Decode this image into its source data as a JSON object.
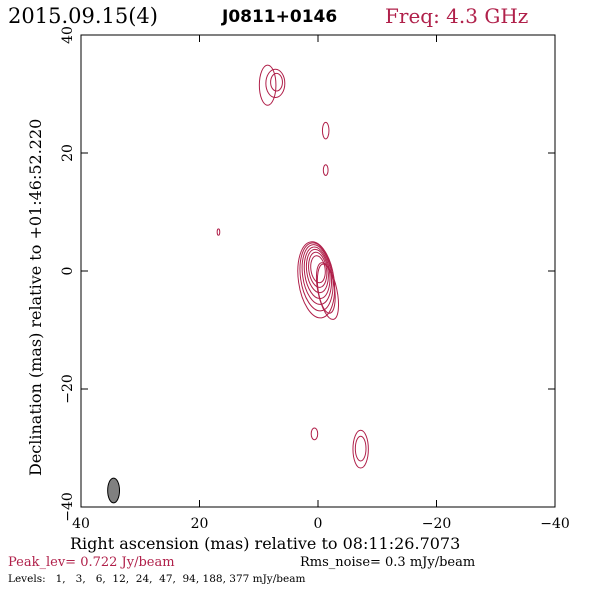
{
  "header": {
    "epoch": "2015.09.15(4)",
    "source": "J0811+0146",
    "freq": "Freq: 4.3 GHz"
  },
  "footer": {
    "peak": "Peak_lev=  0.722 Jy/beam",
    "rms": "Rms_noise=   0.3 mJy/beam",
    "levels": "Levels:   1,   3,   6,  12,  24,  47,  94, 188, 377 mJy/beam"
  },
  "colors": {
    "contour": "#b0204a",
    "freq_text": "#b0204a",
    "peak_text": "#b0204a",
    "beam_fill": "#808080",
    "axes": "#000000"
  },
  "chart_data": {
    "type": "contour",
    "xlabel": "Right ascension (mas) relative to 08:11:26.7073",
    "ylabel": "Declination (mas) relative to +01:46:52.220",
    "xlim": [
      40,
      -40
    ],
    "ylim": [
      -40,
      40
    ],
    "xticks": [
      40,
      20,
      0,
      -20,
      -40
    ],
    "yticks": [
      -40,
      -20,
      0,
      20,
      40
    ],
    "xtick_labels": [
      "40",
      "20",
      "0",
      "−20",
      "−40"
    ],
    "ytick_labels": [
      "−40",
      "−20",
      "0",
      "20",
      "40"
    ],
    "levels_mJy": [
      1,
      3,
      6,
      12,
      24,
      47,
      94,
      188,
      377
    ],
    "peak_Jy_per_beam": 0.722,
    "rms_mJy_per_beam": 0.3,
    "beam": {
      "x": 34.5,
      "y": -37.2,
      "major": 4.2,
      "minor": 2.0,
      "pa_deg": 0
    },
    "contours": [
      {
        "x": 8.5,
        "y": 31.5,
        "rx": 1.4,
        "ry": 3.4,
        "angle": 0
      },
      {
        "x": 7.2,
        "y": 31.8,
        "rx": 1.6,
        "ry": 2.4,
        "angle": 0
      },
      {
        "x": 7.0,
        "y": 32.0,
        "rx": 1.0,
        "ry": 1.5,
        "angle": 0
      },
      {
        "x": -1.3,
        "y": 23.8,
        "rx": 0.55,
        "ry": 1.4,
        "angle": 0
      },
      {
        "x": -1.3,
        "y": 17.1,
        "rx": 0.4,
        "ry": 0.9,
        "angle": 0
      },
      {
        "x": 16.8,
        "y": 6.6,
        "rx": 0.22,
        "ry": 0.55,
        "angle": 0
      },
      {
        "x": 0.3,
        "y": -1.5,
        "rx": 3.0,
        "ry": 6.5,
        "angle": -8
      },
      {
        "x": 0.25,
        "y": -1.0,
        "rx": 2.7,
        "ry": 5.8,
        "angle": -8
      },
      {
        "x": 0.2,
        "y": -0.6,
        "rx": 2.4,
        "ry": 5.1,
        "angle": -8
      },
      {
        "x": 0.15,
        "y": -0.3,
        "rx": 2.1,
        "ry": 4.4,
        "angle": -8
      },
      {
        "x": 0.1,
        "y": 0.0,
        "rx": 1.8,
        "ry": 3.7,
        "angle": -8
      },
      {
        "x": 0.05,
        "y": 0.2,
        "rx": 1.5,
        "ry": 3.0,
        "angle": -8
      },
      {
        "x": 0.0,
        "y": 0.3,
        "rx": 1.2,
        "ry": 2.3,
        "angle": -8
      },
      {
        "x": -1.4,
        "y": -3.0,
        "rx": 1.4,
        "ry": 4.2,
        "angle": -8
      },
      {
        "x": -1.6,
        "y": -3.4,
        "rx": 1.6,
        "ry": 4.9,
        "angle": -12
      },
      {
        "x": 0.6,
        "y": -27.6,
        "rx": 0.55,
        "ry": 1.0,
        "angle": 0
      },
      {
        "x": -7.2,
        "y": -30.2,
        "rx": 1.3,
        "ry": 3.2,
        "angle": 0
      },
      {
        "x": -7.2,
        "y": -30.1,
        "rx": 0.9,
        "ry": 2.1,
        "angle": 0
      }
    ]
  }
}
